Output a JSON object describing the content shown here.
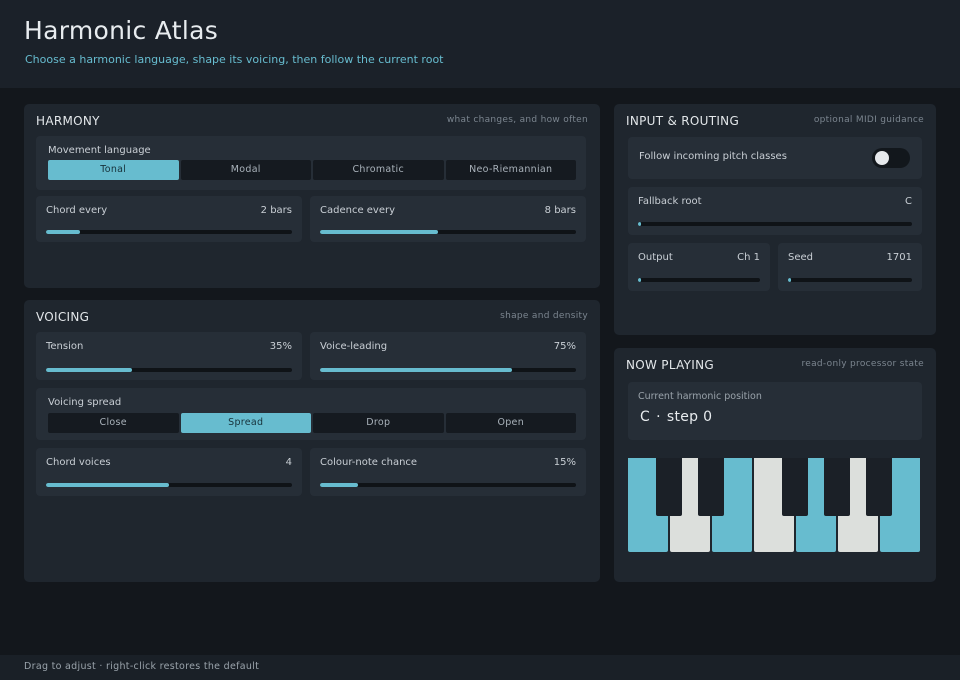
{
  "header": {
    "title": "Harmonic Atlas",
    "subtitle": "Choose a harmonic language, shape its voicing, then follow the current root"
  },
  "harmony": {
    "title": "HARMONY",
    "hint": "what changes, and how often",
    "movement": {
      "label": "Movement language",
      "options": [
        "Tonal",
        "Modal",
        "Chromatic",
        "Neo-Riemannian"
      ],
      "selected": "Tonal"
    },
    "chord_every": {
      "label": "Chord every",
      "value": "2 bars",
      "level": 0.14
    },
    "cadence_every": {
      "label": "Cadence every",
      "value": "8 bars",
      "level": 0.46
    }
  },
  "voicing": {
    "title": "VOICING",
    "hint": "shape and density",
    "tension": {
      "label": "Tension",
      "value": "35%",
      "level": 0.35
    },
    "voice_leading": {
      "label": "Voice-leading",
      "value": "75%",
      "level": 0.75
    },
    "spread": {
      "label": "Voicing spread",
      "options": [
        "Close",
        "Spread",
        "Drop",
        "Open"
      ],
      "selected": "Spread"
    },
    "chord_voices": {
      "label": "Chord voices",
      "value": "4",
      "level": 0.5
    },
    "colour_note": {
      "label": "Colour-note chance",
      "value": "15%",
      "level": 0.15
    }
  },
  "routing": {
    "title": "INPUT & ROUTING",
    "hint": "optional MIDI guidance",
    "follow": {
      "label": "Follow incoming pitch classes",
      "on": false
    },
    "fallback_root": {
      "label": "Fallback root",
      "value": "C",
      "level": 0.0
    },
    "output": {
      "label": "Output",
      "value": "Ch 1",
      "level": 0.0
    },
    "seed": {
      "label": "Seed",
      "value": "1701",
      "level": 0.0
    }
  },
  "now_playing": {
    "title": "NOW PLAYING",
    "hint": "read-only processor state",
    "position_label": "Current harmonic position",
    "root": "C",
    "separator": "·",
    "step": "step 0",
    "white_keys": [
      {
        "note": "C",
        "active": true
      },
      {
        "note": "D",
        "active": false
      },
      {
        "note": "E",
        "active": true
      },
      {
        "note": "F",
        "active": false
      },
      {
        "note": "G",
        "active": true
      },
      {
        "note": "A",
        "active": false
      },
      {
        "note": "B",
        "active": true
      }
    ],
    "colors": {
      "active": "#67bccf",
      "inactive": "#dcdfdc",
      "black": "#1b2027"
    }
  },
  "footer": {
    "text": "Drag to adjust · right-click restores the default"
  }
}
